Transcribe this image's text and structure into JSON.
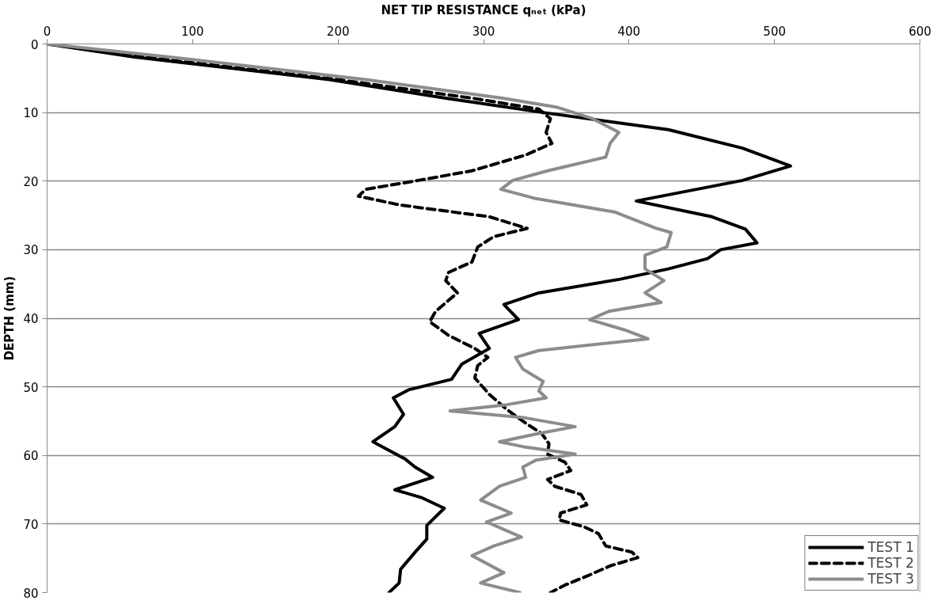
{
  "chart_data": {
    "type": "line",
    "xlabel": "NET TIP RESISTANCE qₙₑₜ (kPa)",
    "ylabel": "DEPTH (mm)",
    "xlim": [
      0,
      600
    ],
    "xticks": [
      0,
      100,
      200,
      300,
      400,
      500,
      600
    ],
    "ylim": [
      80,
      0
    ],
    "yticks": [
      0,
      10,
      20,
      30,
      40,
      50,
      60,
      70,
      80
    ],
    "grid": "y",
    "legend": "bottom right",
    "series": [
      {
        "name": "TEST 1",
        "color": "#000000",
        "line_style": "solid",
        "x": [
          0,
          60,
          194,
          274,
          341,
          427,
          478,
          511,
          478,
          405,
          457,
          480,
          488,
          463,
          454,
          427,
          394,
          338,
          314,
          324,
          297,
          304,
          285,
          278,
          249,
          238,
          245,
          239,
          224,
          246,
          253,
          265,
          239,
          258,
          273,
          261,
          261,
          253,
          243,
          242,
          235
        ],
        "values": [
          0,
          1.9,
          5.2,
          7.9,
          10,
          12.5,
          15.2,
          17.8,
          19.9,
          22.9,
          25.2,
          27,
          29,
          30,
          31.3,
          32.8,
          34.3,
          36.3,
          38,
          40.2,
          42.2,
          44.4,
          46.7,
          48.9,
          50.4,
          51.6,
          54,
          55.8,
          58,
          60.5,
          61.7,
          63.2,
          65,
          66.2,
          67.7,
          70.2,
          72.2,
          74.1,
          76.6,
          78.6,
          80
        ]
      },
      {
        "name": "TEST 2",
        "color": "#000000",
        "line_style": "dashed",
        "x": [
          0,
          66,
          200,
          292,
          338,
          346,
          343,
          347,
          329,
          292,
          255,
          219,
          214,
          243,
          304,
          330,
          307,
          296,
          292,
          276,
          274,
          282,
          267,
          263,
          276,
          294,
          303,
          296,
          294,
          304,
          316,
          329,
          340,
          345,
          344,
          356,
          360,
          344,
          349,
          367,
          371,
          353,
          352,
          369,
          379,
          384,
          402,
          406,
          387,
          371,
          356,
          346
        ],
        "values": [
          0,
          1.9,
          5.2,
          7.9,
          9.5,
          10.9,
          12.9,
          14.5,
          16.2,
          18.5,
          19.9,
          21.2,
          22.2,
          23.5,
          25.2,
          26.9,
          28.1,
          29.6,
          31.8,
          33.3,
          34.5,
          36.3,
          39,
          40.5,
          42.5,
          44.4,
          45.7,
          46.9,
          48.7,
          51.1,
          53.3,
          55.3,
          56.8,
          58.3,
          59.8,
          61,
          62.2,
          63.5,
          64.5,
          65.7,
          67.2,
          68.4,
          69.4,
          70.4,
          71.4,
          73.2,
          74.1,
          74.9,
          76.1,
          77.6,
          78.9,
          80
        ]
      },
      {
        "name": "TEST 3",
        "color": "#8c8c8c",
        "line_style": "solid",
        "x": [
          0,
          84,
          219,
          313,
          350,
          375,
          393,
          387,
          384,
          344,
          320,
          312,
          335,
          390,
          419,
          429,
          426,
          411,
          411,
          424,
          411,
          422,
          386,
          373,
          397,
          413,
          338,
          322,
          327,
          341,
          338,
          343,
          316,
          277,
          328,
          363,
          338,
          311,
          329,
          363,
          336,
          327,
          329,
          311,
          298,
          319,
          302,
          326,
          307,
          292,
          314,
          298,
          325
        ],
        "values": [
          0,
          1.9,
          5.2,
          7.9,
          9.2,
          10.9,
          12.9,
          14.5,
          16.5,
          18.5,
          19.9,
          21.2,
          22.5,
          24.5,
          26.9,
          27.5,
          29.6,
          30.8,
          32.8,
          34.5,
          36.3,
          37.7,
          39,
          40.2,
          41.7,
          43,
          44.7,
          45.7,
          47.4,
          49.2,
          50.6,
          51.6,
          52.6,
          53.5,
          54.5,
          55.8,
          56.8,
          58,
          58.8,
          59.8,
          60.7,
          61.7,
          63.2,
          64.5,
          66.5,
          68.4,
          69.7,
          71.9,
          73.2,
          74.6,
          77.1,
          78.6,
          80
        ]
      }
    ]
  }
}
